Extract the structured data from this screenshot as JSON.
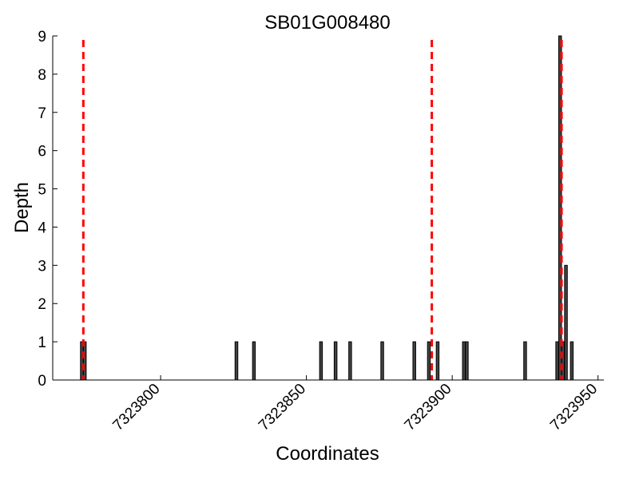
{
  "chart_data": {
    "type": "bar",
    "title": "SB01G008480",
    "xlabel": "Coordinates",
    "ylabel": "Depth",
    "xlim": [
      7323763,
      7323952
    ],
    "ylim": [
      0,
      9
    ],
    "x_ticks": [
      7323800,
      7323850,
      7323900,
      7323950
    ],
    "y_ticks": [
      0,
      1,
      2,
      3,
      4,
      5,
      6,
      7,
      8,
      9
    ],
    "grid": false,
    "bar_fill": "#444444",
    "bar_edge": "#000000",
    "marker_color": "#ff0000",
    "points": [
      {
        "x": 7323773,
        "y": 1
      },
      {
        "x": 7323774,
        "y": 1
      },
      {
        "x": 7323826,
        "y": 1
      },
      {
        "x": 7323832,
        "y": 1
      },
      {
        "x": 7323855,
        "y": 1
      },
      {
        "x": 7323860,
        "y": 1
      },
      {
        "x": 7323865,
        "y": 1
      },
      {
        "x": 7323876,
        "y": 1
      },
      {
        "x": 7323887,
        "y": 1
      },
      {
        "x": 7323892,
        "y": 1
      },
      {
        "x": 7323895,
        "y": 1
      },
      {
        "x": 7323904,
        "y": 1
      },
      {
        "x": 7323905,
        "y": 1
      },
      {
        "x": 7323925,
        "y": 1
      },
      {
        "x": 7323936,
        "y": 1
      },
      {
        "x": 7323937,
        "y": 9
      },
      {
        "x": 7323938,
        "y": 1
      },
      {
        "x": 7323939,
        "y": 3
      },
      {
        "x": 7323941,
        "y": 1
      }
    ],
    "markers": [
      7323773.5,
      7323893,
      7323937.5
    ]
  }
}
